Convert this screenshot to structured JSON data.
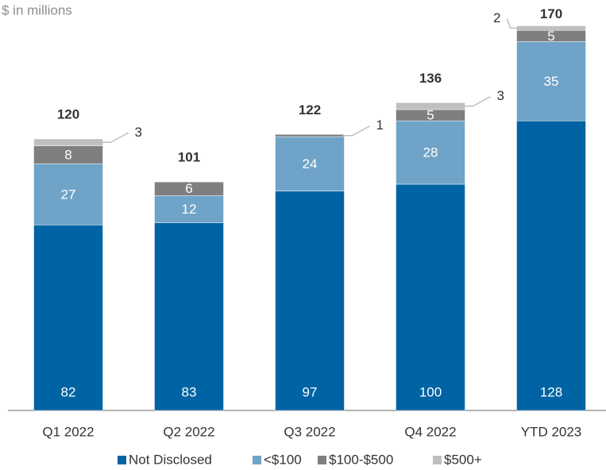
{
  "chart_data": {
    "type": "stacked_bar",
    "subtitle": "$ in millions",
    "categories": [
      "Q1 2022",
      "Q2 2022",
      "Q3 2022",
      "Q4 2022",
      "YTD 2023"
    ],
    "series": [
      {
        "name": "Not Disclosed",
        "color": "#0064a4",
        "values": [
          82,
          83,
          97,
          100,
          128
        ]
      },
      {
        "name": "<$100",
        "color": "#6fa3c7",
        "values": [
          27,
          12,
          24,
          28,
          35
        ]
      },
      {
        "name": "$100-$500",
        "color": "#7f7f7f",
        "values": [
          8,
          6,
          1,
          5,
          5
        ]
      },
      {
        "name": "$500+",
        "color": "#bfbfbf",
        "values": [
          3,
          0,
          0,
          3,
          2
        ]
      }
    ],
    "totals": [
      120,
      101,
      122,
      136,
      170
    ]
  }
}
